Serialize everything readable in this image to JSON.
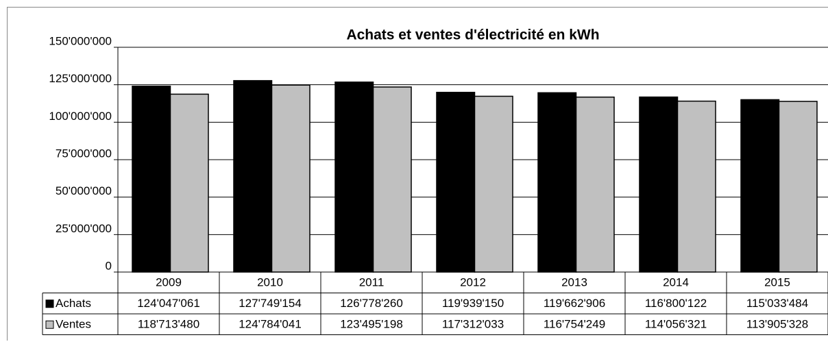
{
  "chart_data": {
    "type": "bar",
    "title": "Achats et ventes d'électricité en kWh",
    "categories": [
      "2009",
      "2010",
      "2011",
      "2012",
      "2013",
      "2014",
      "2015"
    ],
    "series": [
      {
        "name": "Achats",
        "color": "#000000",
        "values": [
          124047061,
          127749154,
          126778260,
          119939150,
          119662906,
          116800122,
          115033484
        ],
        "value_labels": [
          "124'047'061",
          "127'749'154",
          "126'778'260",
          "119'939'150",
          "119'662'906",
          "116'800'122",
          "115'033'484"
        ]
      },
      {
        "name": "Ventes",
        "color": "#c0c0c0",
        "values": [
          118713480,
          124784041,
          123495198,
          117312033,
          116754249,
          114056321,
          113905328
        ],
        "value_labels": [
          "118'713'480",
          "124'784'041",
          "123'495'198",
          "117'312'033",
          "116'754'249",
          "114'056'321",
          "113'905'328"
        ]
      }
    ],
    "ylim": [
      0,
      150000000
    ],
    "yticks": [
      {
        "value": 0,
        "label": "0"
      },
      {
        "value": 25000000,
        "label": "25'000'000"
      },
      {
        "value": 50000000,
        "label": "50'000'000"
      },
      {
        "value": 75000000,
        "label": "75'000'000"
      },
      {
        "value": 100000000,
        "label": "100'000'000"
      },
      {
        "value": 125000000,
        "label": "125'000'000"
      },
      {
        "value": 150000000,
        "label": "150'000'000"
      }
    ],
    "grid": true
  }
}
